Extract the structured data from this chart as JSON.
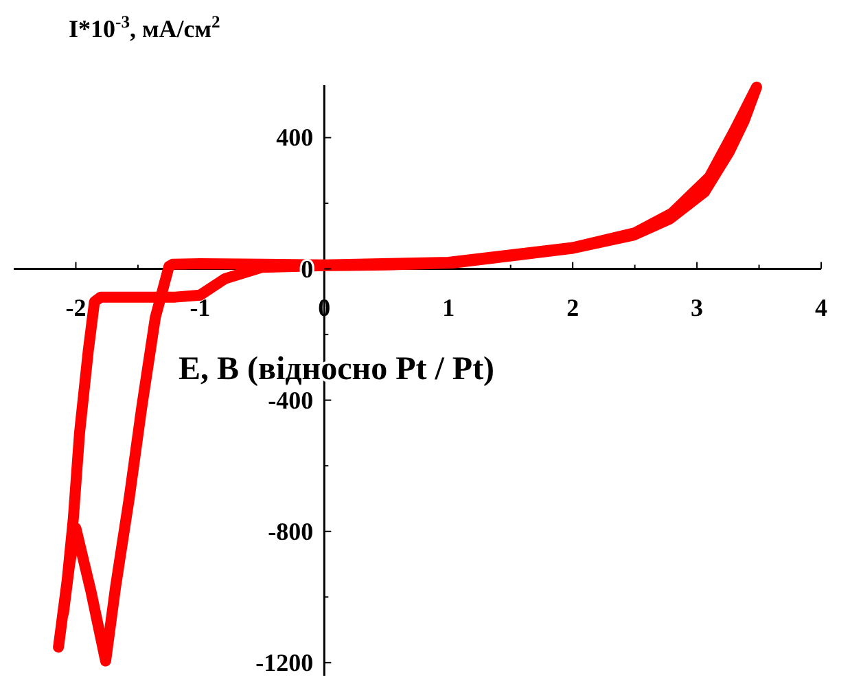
{
  "chart_data": {
    "type": "line",
    "xlabel": "Е, В (відносно Pt / Pt)",
    "ylabel": "I*10$^{-3}$, мА/см$^{2}$",
    "xlim": [
      -2.5,
      4
    ],
    "ylim": [
      -1240,
      560
    ],
    "xticks": [
      -2,
      {
        "value": -1.5,
        "label": null
      },
      -1,
      {
        "value": -0.5,
        "label": null
      },
      0,
      {
        "value": 0.5,
        "label": null
      },
      1,
      {
        "value": 1.5,
        "label": null
      },
      2,
      {
        "value": 2.5,
        "label": null
      },
      3,
      {
        "value": 3.5,
        "label": null
      },
      4
    ],
    "yticks": [
      {
        "value": -1200,
        "label": "-1200"
      },
      {
        "value": -1000,
        "label": null
      },
      {
        "value": -800,
        "label": "-800"
      },
      {
        "value": -600,
        "label": null
      },
      {
        "value": -400,
        "label": "-400"
      },
      {
        "value": -200,
        "label": null
      },
      0,
      {
        "value": 200,
        "label": null
      },
      400
    ],
    "line_style": "solid",
    "marker": "none",
    "series": [
      {
        "color": "#ff0000",
        "x": [
          -2.14,
          -2.07,
          -2.02,
          -1.97,
          -1.9,
          -1.85,
          -1.8,
          -1.5,
          -1.2,
          -1.0,
          -0.8,
          -0.5,
          0,
          0.5,
          1.03,
          1.45,
          1.99,
          2.49,
          2.78,
          3.06,
          3.26,
          3.38,
          3.48,
          3.3,
          3.1,
          2.8,
          2.5,
          2.0,
          1.0,
          0,
          -0.5,
          -1.0,
          -1.22,
          -1.25,
          -1.36,
          -1.47,
          -1.57,
          -1.68,
          -1.76,
          -1.88,
          -2.0,
          -2.05,
          -2.1
        ],
        "values": [
          -1153,
          -950,
          -760,
          -500,
          -250,
          -100,
          -86,
          -86,
          -86,
          -80,
          -30,
          5,
          10,
          12,
          18,
          37,
          62,
          103,
          152,
          234,
          357,
          451,
          554,
          420,
          280,
          170,
          110,
          65,
          20,
          12,
          14,
          16,
          14,
          8,
          -148,
          -423,
          -698,
          -969,
          -1195,
          -980,
          -790,
          -900,
          -1050
        ]
      }
    ]
  }
}
